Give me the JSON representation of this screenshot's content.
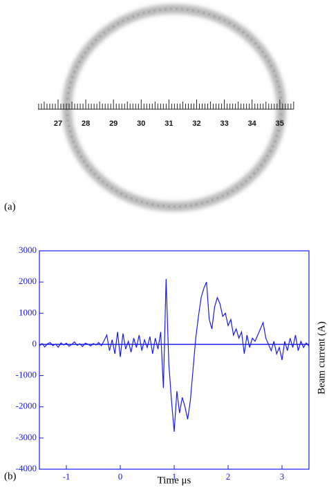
{
  "figure": {
    "panel_a": {
      "label": "(a)",
      "ruler_labels": [
        27,
        28,
        29,
        30,
        31,
        32,
        33,
        34,
        35
      ]
    },
    "panel_b": {
      "label": "(b)"
    }
  },
  "chart_data": {
    "type": "line",
    "xlabel": "Time μs",
    "ylabel": "Beam current (A)",
    "xlim": [
      -1.5,
      3.5
    ],
    "xticks": [
      -1,
      0,
      1,
      2,
      3
    ],
    "ylim": [
      -4000,
      3000
    ],
    "yticks": [
      -4000,
      -3000,
      -2000,
      -1000,
      0,
      1000,
      2000,
      3000
    ],
    "zero_line": true,
    "series": [
      {
        "color": "#1a1aee",
        "x": [
          -1.5,
          -1.45,
          -1.4,
          -1.35,
          -1.3,
          -1.25,
          -1.2,
          -1.15,
          -1.1,
          -1.05,
          -1,
          -0.95,
          -0.9,
          -0.85,
          -0.8,
          -0.75,
          -0.7,
          -0.65,
          -0.6,
          -0.55,
          -0.5,
          -0.45,
          -0.4,
          -0.35,
          -0.3,
          -0.25,
          -0.2,
          -0.15,
          -0.1,
          -0.05,
          0,
          0.05,
          0.1,
          0.15,
          0.2,
          0.25,
          0.3,
          0.35,
          0.4,
          0.45,
          0.5,
          0.55,
          0.6,
          0.65,
          0.7,
          0.75,
          0.8,
          0.85,
          0.9,
          0.95,
          1,
          1.05,
          1.1,
          1.15,
          1.2,
          1.25,
          1.3,
          1.35,
          1.4,
          1.45,
          1.5,
          1.55,
          1.6,
          1.65,
          1.7,
          1.75,
          1.8,
          1.85,
          1.9,
          1.95,
          2,
          2.05,
          2.1,
          2.15,
          2.2,
          2.25,
          2.3,
          2.35,
          2.4,
          2.45,
          2.5,
          2.55,
          2.6,
          2.65,
          2.7,
          2.75,
          2.8,
          2.85,
          2.9,
          2.95,
          3,
          3.05,
          3.1,
          3.15,
          3.2,
          3.25,
          3.3,
          3.35,
          3.4,
          3.45,
          3.5
        ],
        "values": [
          -50,
          30,
          -80,
          20,
          60,
          -40,
          10,
          -90,
          50,
          -20,
          40,
          -60,
          0,
          80,
          -30,
          20,
          -70,
          40,
          10,
          -50,
          30,
          -20,
          60,
          -40,
          120,
          300,
          -200,
          150,
          -300,
          400,
          -400,
          350,
          -150,
          100,
          -250,
          200,
          -100,
          300,
          -200,
          150,
          -100,
          250,
          -300,
          200,
          -150,
          400,
          -1400,
          2100,
          -600,
          -1800,
          -2800,
          -1500,
          -2200,
          -1700,
          -2000,
          -2400,
          -1800,
          -800,
          200,
          900,
          1500,
          1800,
          2000,
          800,
          500,
          1200,
          1500,
          1300,
          900,
          1000,
          600,
          800,
          300,
          500,
          200,
          400,
          -300,
          300,
          -100,
          200,
          100,
          300,
          500,
          700,
          200,
          0,
          -200,
          100,
          -300,
          -100,
          -500,
          100,
          -200,
          200,
          -100,
          300,
          -200,
          100,
          -100,
          50,
          -50
        ]
      }
    ]
  }
}
